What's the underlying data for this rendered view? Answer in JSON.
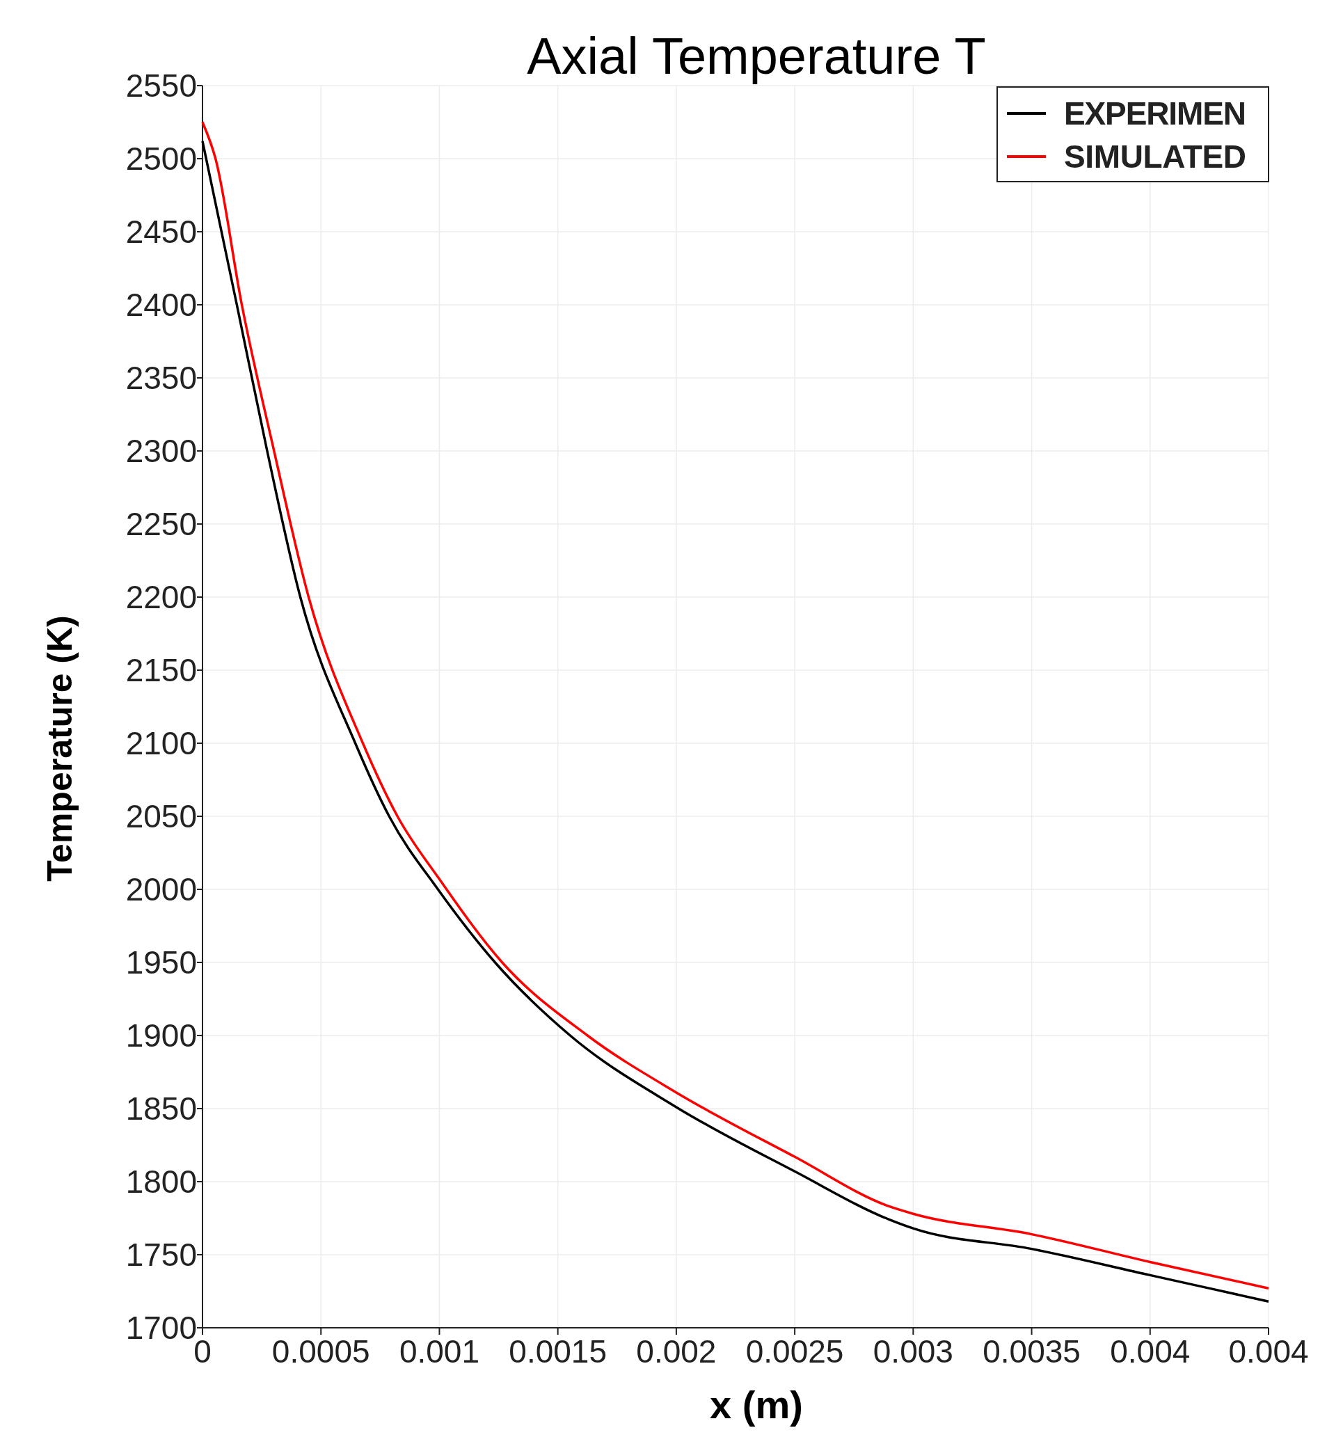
{
  "chart_data": {
    "type": "line",
    "title": "Axial Temperature T",
    "xlabel": "x (m)",
    "ylabel": "Temperature (K)",
    "xlim": [
      0,
      0.0045
    ],
    "xticks": [
      0,
      0.0005,
      0.001,
      0.0015,
      0.002,
      0.0025,
      0.003,
      0.0035,
      0.004,
      {
        "value": 0.0045,
        "label": "0.004"
      }
    ],
    "ylim": [
      1700,
      2550
    ],
    "yticks": [
      1700,
      1750,
      1800,
      1850,
      1900,
      1950,
      2000,
      2050,
      2100,
      2150,
      2200,
      2250,
      2300,
      2350,
      2400,
      2450,
      2500,
      2550
    ],
    "grid": true,
    "legend": "top right",
    "line_style": "solid",
    "marker": "none",
    "series": [
      {
        "name": "EXPERIMEN",
        "color": "#000000",
        "x": [
          0,
          0.000145,
          0.000273,
          0.000413,
          0.000645,
          0.000788,
          0.000994,
          0.001235,
          0.001552,
          0.002,
          0.0025,
          0.0029,
          0.003,
          0.0035,
          0.004,
          0.0045
        ],
        "values": [
          2512,
          2400,
          2300,
          2200,
          2100,
          2050,
          2000,
          1950,
          1900,
          1851,
          1807,
          1774,
          1768,
          1754,
          1736,
          1718
        ]
      },
      {
        "name": "SIMULATED",
        "color": "#ff0000",
        "x": [
          0,
          5.5e-05,
          0.000166,
          0.000302,
          0.000448,
          0.000677,
          0.000823,
          0.001,
          0.001265,
          0.001625,
          0.002,
          0.0025,
          0.0029,
          0.003,
          0.0035,
          0.004,
          0.0045
        ],
        "values": [
          2525,
          2500,
          2400,
          2300,
          2200,
          2100,
          2050,
          2007,
          1950,
          1900,
          1861,
          1817,
          1783,
          1778,
          1764,
          1745,
          1727
        ]
      }
    ]
  }
}
